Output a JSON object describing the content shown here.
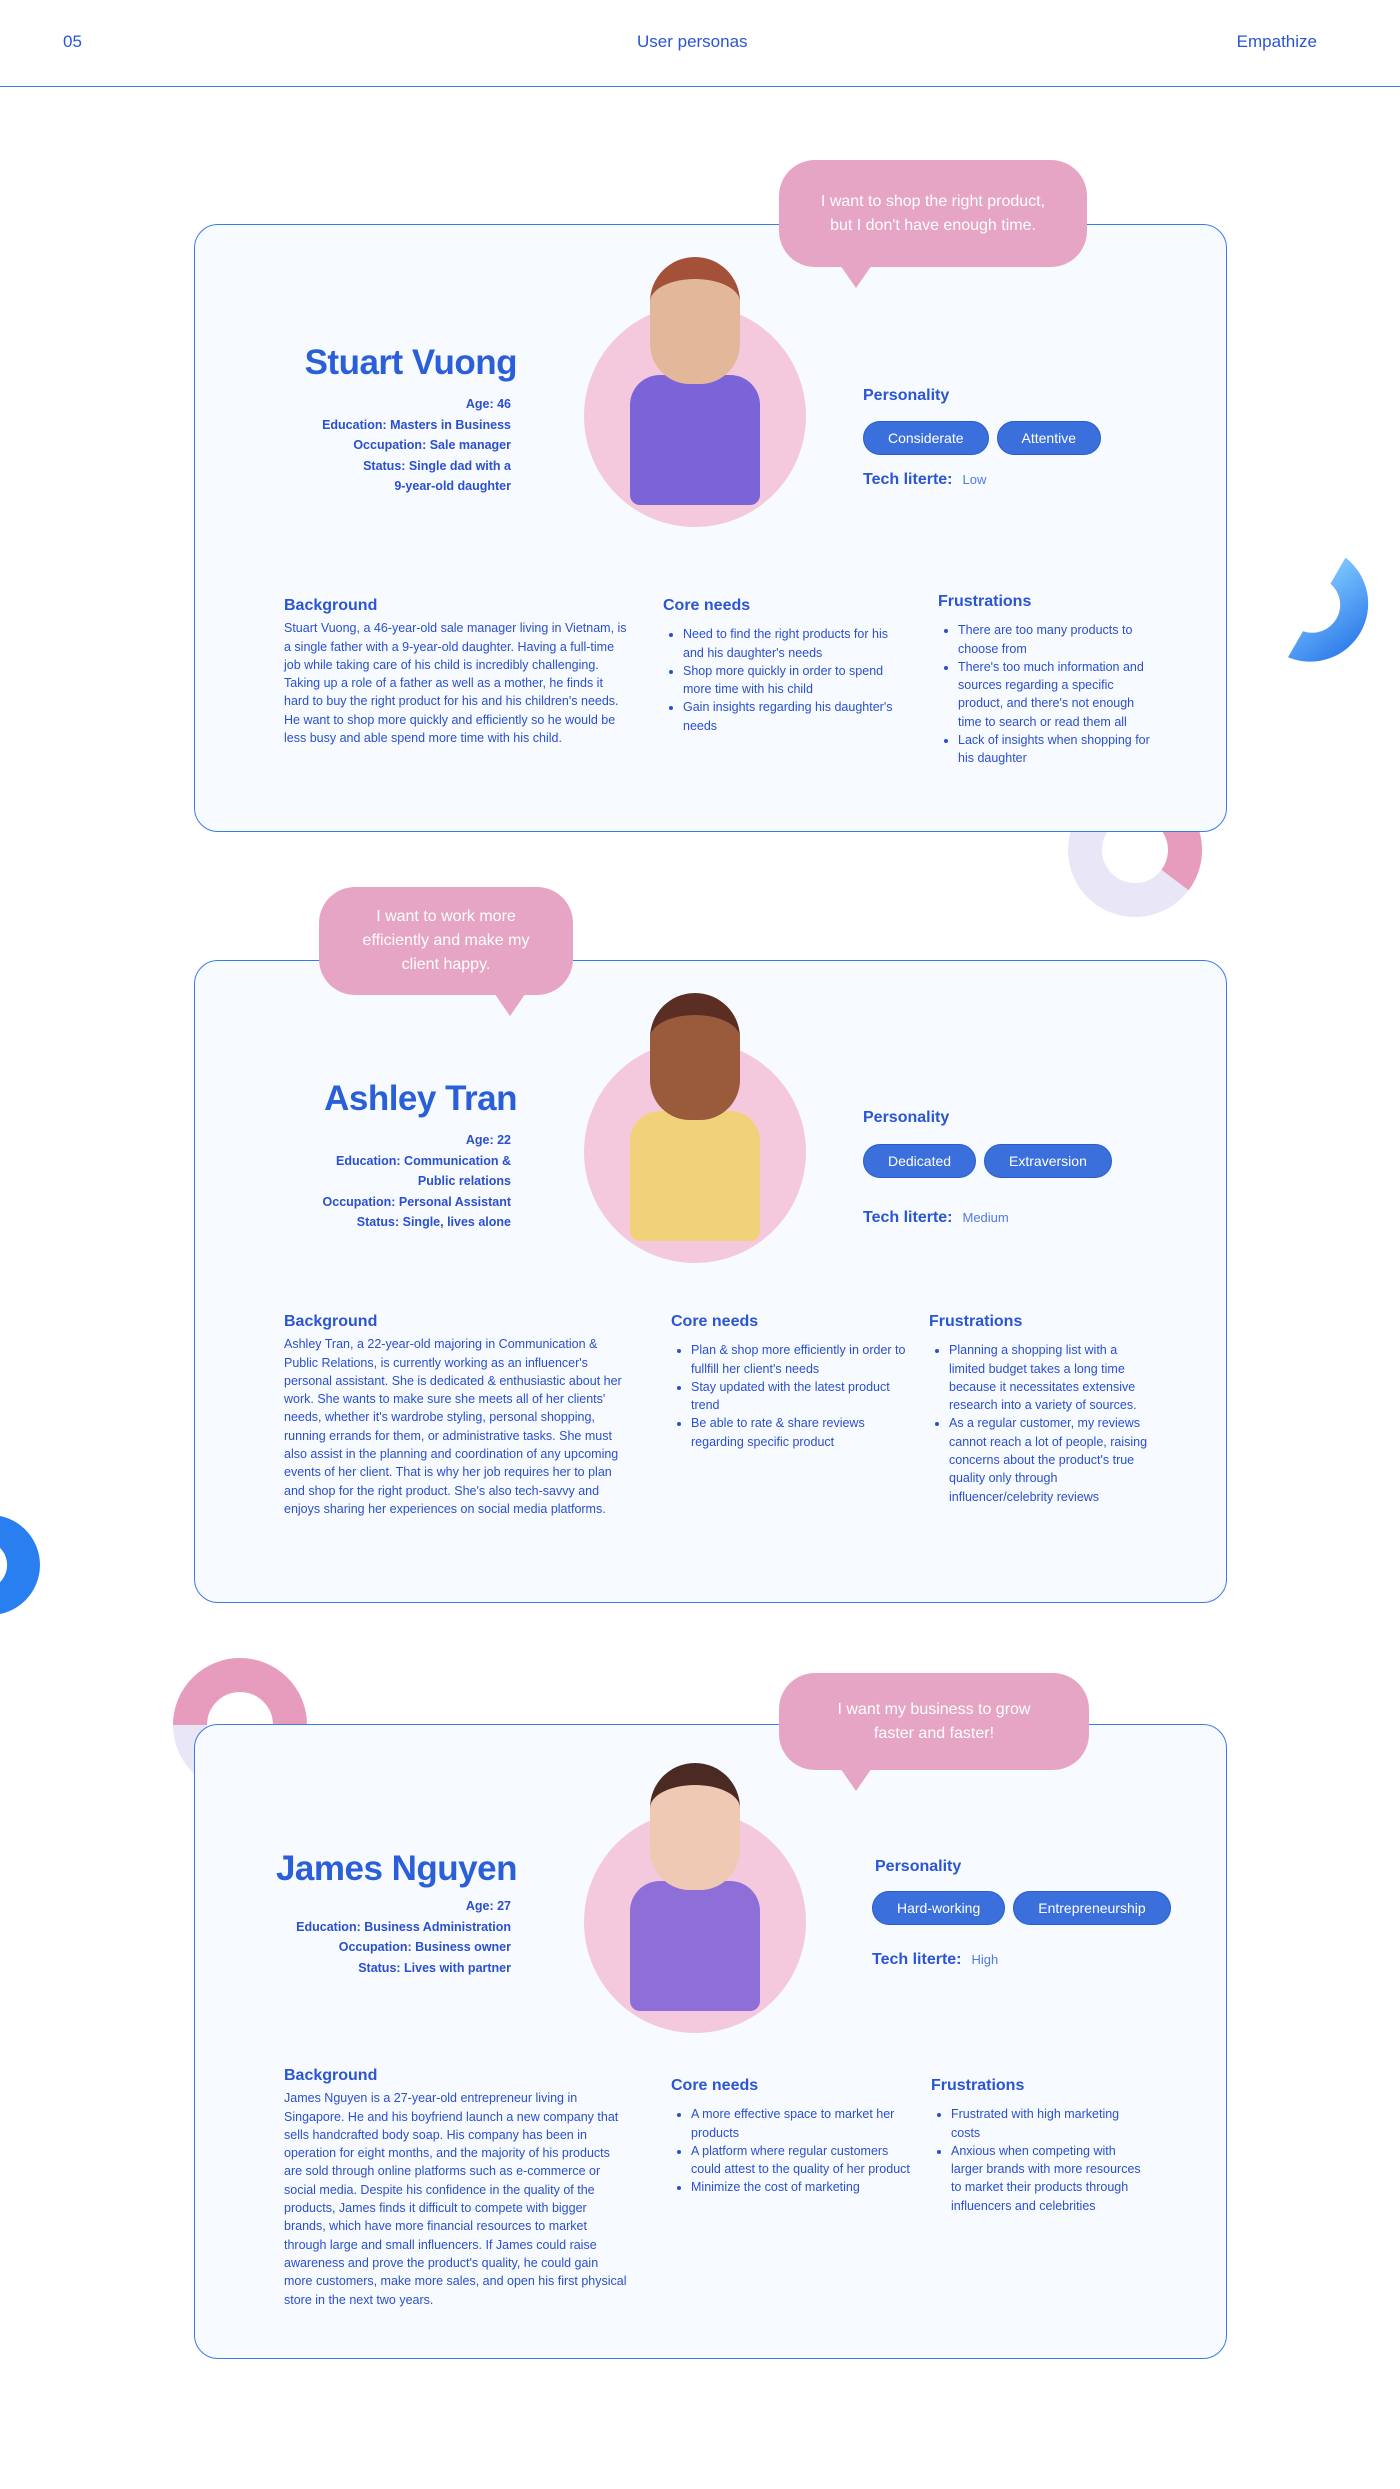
{
  "header": {
    "page_number": "05",
    "title": "User personas",
    "section": "Empathize"
  },
  "labels": {
    "personality": "Personality",
    "tech": "Tech literte:",
    "background": "Background",
    "core_needs": "Core needs",
    "frustrations": "Frustrations"
  },
  "colors": {
    "primary": "#2a55d3",
    "tag": "#3b6fdc",
    "card_border": "#3b7be8",
    "card_bg": "#f7faff",
    "bubble": "#e6a5c4",
    "avatar_bg": "#f4c9de"
  },
  "personas": [
    {
      "name": "Stuart Vuong",
      "quote": "I want to shop the right product, but I don't have enough time.",
      "details": [
        "Age: 46",
        "Education: Masters in Business",
        "Occupation: Sale manager",
        "Status: Single dad with a",
        "9-year-old daughter"
      ],
      "personality": [
        "Considerate",
        "Attentive"
      ],
      "tech": "Low",
      "background": "Stuart Vuong, a 46-year-old sale manager living in Vietnam, is a single father with a 9-year-old daughter. Having a full-time job while taking care of his child is incredibly challenging. Taking up a role of a father as well as a mother, he finds it hard to buy the right product for his and his children's needs. He want to shop more quickly and efficiently so he would be less busy and able spend more time with his child.",
      "core_needs": [
        "Need to find the right products for his and his daughter's needs",
        "Shop more quickly in order to spend more time with his child",
        "Gain insights regarding his daughter's needs"
      ],
      "frustrations": [
        "There are too many products to choose from",
        "There's too much information and sources regarding a specific product, and there's not enough time to search or read them all",
        "Lack of insights when shopping for his daughter"
      ],
      "avatar": {
        "shirt": "#7b63d8",
        "skin": "#e3b89a",
        "hair": "#a4513a"
      }
    },
    {
      "name": "Ashley Tran",
      "quote": "I want to work more efficiently and make my client happy.",
      "details": [
        "Age: 22",
        "Education: Communication &",
        "Public relations",
        "Occupation: Personal Assistant",
        "Status: Single, lives alone"
      ],
      "personality": [
        "Dedicated",
        "Extraversion"
      ],
      "tech": "Medium",
      "background": "Ashley Tran, a 22-year-old majoring in Communication & Public Relations, is currently working as an influencer's personal assistant. She is dedicated & enthusiastic about her work. She wants to make sure she meets all of her clients' needs, whether it's wardrobe styling, personal shopping, running errands for them, or administrative tasks. She must also assist in the planning and coordination of any upcoming events of her client. That is why her job requires her to plan and shop for the right product. She's also tech-savvy and enjoys sharing her experiences on social media platforms.",
      "core_needs": [
        "Plan & shop more efficiently in order to fullfill her client's needs",
        "Stay updated with the latest product trend",
        "Be able to rate & share reviews regarding specific product"
      ],
      "frustrations": [
        "Planning a shopping list with a limited budget takes a long time because it necessitates extensive research into a variety of sources.",
        "As a regular customer, my reviews cannot reach a lot of people, raising concerns about the product's true quality only through influencer/celebrity reviews"
      ],
      "avatar": {
        "shirt": "#f1d27a",
        "skin": "#9a5a3c",
        "hair": "#5a2e22"
      }
    },
    {
      "name": "James Nguyen",
      "quote": "I want my business to grow faster and faster!",
      "details": [
        "Age: 27",
        "Education: Business Administration",
        "Occupation: Business owner",
        "Status: Lives with partner"
      ],
      "personality": [
        "Hard-working",
        "Entrepreneurship"
      ],
      "tech": "High",
      "background": "James Nguyen is a 27-year-old entrepreneur living in Singapore. He and his boyfriend launch a new company that sells handcrafted body soap. His company has been in operation for eight months, and the majority of his products are sold through online platforms such as e-commerce or social media. Despite his confidence in the quality of the products, James finds it difficult to compete with bigger brands, which have more financial resources to market through large and small influencers. If James could raise awareness and prove the product's quality, he could gain more customers, make more sales, and open his first physical store in the next two years.",
      "core_needs": [
        "A more effective space to market her products",
        "A platform where regular customers could attest to the quality of her product",
        "Minimize the cost of marketing"
      ],
      "frustrations": [
        "Frustrated with high marketing costs",
        "Anxious when competing with larger brands with more resources to market their products through influencers and celebrities"
      ],
      "avatar": {
        "shirt": "#8e6fd8",
        "skin": "#f0c9b4",
        "hair": "#4a2a22"
      }
    }
  ]
}
